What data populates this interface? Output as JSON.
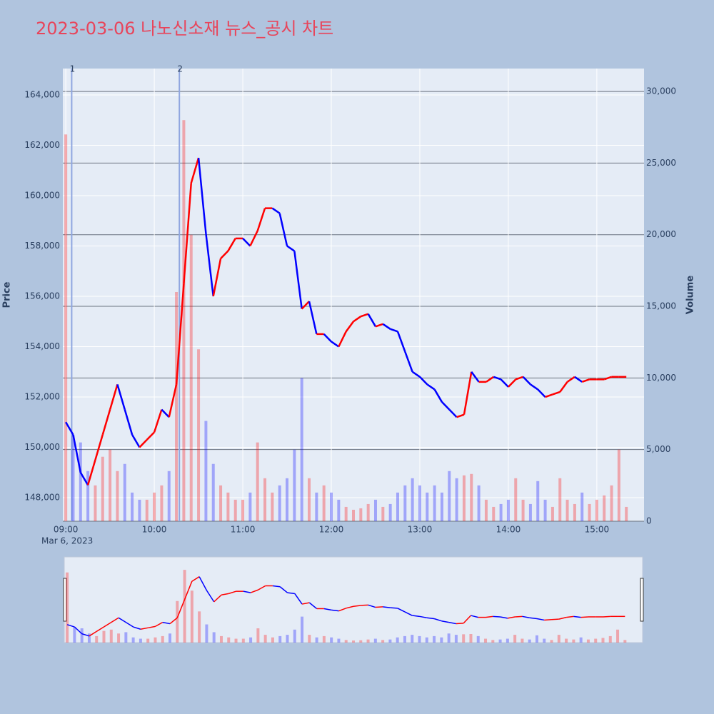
{
  "chart_data": {
    "type": "line",
    "title": "2023-03-06 나노신소재 뉴스_공시 차트",
    "y_label": "Price",
    "y2_label": "Volume",
    "x_date_label": "Mar 6, 2023",
    "x": [
      "2023-03-06 09:00",
      "2023-03-06 09:05",
      "2023-03-06 09:10",
      "2023-03-06 09:15",
      "2023-03-06 09:20",
      "2023-03-06 09:25",
      "2023-03-06 09:30",
      "2023-03-06 09:35",
      "2023-03-06 09:40",
      "2023-03-06 09:45",
      "2023-03-06 09:50",
      "2023-03-06 09:55",
      "2023-03-06 10:00",
      "2023-03-06 10:05",
      "2023-03-06 10:10",
      "2023-03-06 10:15",
      "2023-03-06 10:20",
      "2023-03-06 10:25",
      "2023-03-06 10:30",
      "2023-03-06 10:35",
      "2023-03-06 10:40",
      "2023-03-06 10:45",
      "2023-03-06 10:50",
      "2023-03-06 10:55",
      "2023-03-06 11:00",
      "2023-03-06 11:05",
      "2023-03-06 11:10",
      "2023-03-06 11:15",
      "2023-03-06 11:20",
      "2023-03-06 11:25",
      "2023-03-06 11:30",
      "2023-03-06 11:35",
      "2023-03-06 11:40",
      "2023-03-06 11:45",
      "2023-03-06 11:50",
      "2023-03-06 11:55",
      "2023-03-06 12:00",
      "2023-03-06 12:05",
      "2023-03-06 12:10",
      "2023-03-06 12:15",
      "2023-03-06 12:20",
      "2023-03-06 12:25",
      "2023-03-06 12:30",
      "2023-03-06 12:35",
      "2023-03-06 12:40",
      "2023-03-06 12:45",
      "2023-03-06 12:50",
      "2023-03-06 12:55",
      "2023-03-06 13:00",
      "2023-03-06 13:05",
      "2023-03-06 13:10",
      "2023-03-06 13:15",
      "2023-03-06 13:20",
      "2023-03-06 13:25",
      "2023-03-06 13:30",
      "2023-03-06 13:35",
      "2023-03-06 13:40",
      "2023-03-06 13:45",
      "2023-03-06 13:50",
      "2023-03-06 13:55",
      "2023-03-06 14:00",
      "2023-03-06 14:05",
      "2023-03-06 14:10",
      "2023-03-06 14:15",
      "2023-03-06 14:20",
      "2023-03-06 14:25",
      "2023-03-06 14:30",
      "2023-03-06 14:35",
      "2023-03-06 14:40",
      "2023-03-06 14:45",
      "2023-03-06 14:50",
      "2023-03-06 14:55",
      "2023-03-06 15:00",
      "2023-03-06 15:05",
      "2023-03-06 15:10",
      "2023-03-06 15:15",
      "2023-03-06 15:20"
    ],
    "series": [
      {
        "name": "Price",
        "values": [
          151000,
          150500,
          149000,
          148500,
          149500,
          150500,
          151500,
          152500,
          151500,
          150500,
          150000,
          150300,
          150600,
          151500,
          151200,
          152500,
          156500,
          160500,
          161500,
          158500,
          156000,
          157500,
          157800,
          158300,
          158300,
          158000,
          158600,
          159500,
          159500,
          159300,
          158000,
          157800,
          155500,
          155800,
          154500,
          154500,
          154200,
          154000,
          154600,
          155000,
          155200,
          155300,
          154800,
          154900,
          154700,
          154600,
          153800,
          153000,
          152800,
          152500,
          152300,
          151800,
          151500,
          151200,
          151300,
          153000,
          152600,
          152600,
          152800,
          152700,
          152400,
          152700,
          152800,
          152500,
          152300,
          152000,
          152100,
          152200,
          152600,
          152800,
          152600,
          152700,
          152700,
          152700,
          152800,
          152800,
          152800
        ]
      },
      {
        "name": "Volume",
        "axis": "y2",
        "values": [
          27000,
          6000,
          5500,
          3500,
          2500,
          4500,
          5000,
          3500,
          4000,
          2000,
          1500,
          1500,
          2000,
          2500,
          3500,
          16000,
          28000,
          20000,
          12000,
          7000,
          4000,
          2500,
          2000,
          1500,
          1500,
          2000,
          5500,
          3000,
          2000,
          2500,
          3000,
          5000,
          10000,
          3000,
          2000,
          2500,
          2000,
          1500,
          1000,
          800,
          900,
          1200,
          1500,
          1000,
          1200,
          2000,
          2500,
          3000,
          2500,
          2000,
          2500,
          2000,
          3500,
          3000,
          3200,
          3300,
          2500,
          1500,
          1000,
          1200,
          1500,
          3000,
          1500,
          1200,
          2800,
          1500,
          1000,
          3000,
          1500,
          1200,
          2000,
          1200,
          1500,
          1800,
          2500,
          5000,
          1000
        ]
      }
    ],
    "up_color": "#ff0000",
    "down_color": "#0000ff",
    "xlim": [
      "2023-03-06 08:58",
      "2023-03-06 15:32"
    ],
    "xticks": [
      {
        "value": "2023-03-06 09:00",
        "label": "09:00"
      },
      {
        "value": "2023-03-06 10:00",
        "label": "10:00"
      },
      {
        "value": "2023-03-06 11:00",
        "label": "11:00"
      },
      {
        "value": "2023-03-06 12:00",
        "label": "12:00"
      },
      {
        "value": "2023-03-06 13:00",
        "label": "13:00"
      },
      {
        "value": "2023-03-06 14:00",
        "label": "14:00"
      },
      {
        "value": "2023-03-06 15:00",
        "label": "15:00"
      }
    ],
    "ylim": [
      147064,
      165050
    ],
    "yticks": [
      {
        "value": 148000,
        "label": "148,000"
      },
      {
        "value": 150000,
        "label": "150,000"
      },
      {
        "value": 152000,
        "label": "152,000"
      },
      {
        "value": 154000,
        "label": "154,000"
      },
      {
        "value": 156000,
        "label": "156,000"
      },
      {
        "value": 158000,
        "label": "158,000"
      },
      {
        "value": 160000,
        "label": "160,000"
      },
      {
        "value": 162000,
        "label": "162,000"
      },
      {
        "value": 164000,
        "label": "164,000"
      }
    ],
    "y2lim": [
      0,
      31600
    ],
    "y2ticks": [
      0,
      {
        "value": 5000,
        "label": "5,000"
      },
      {
        "value": 10000,
        "label": "10,000"
      },
      {
        "value": 15000,
        "label": "15,000"
      },
      {
        "value": 20000,
        "label": "20,000"
      },
      {
        "value": 25000,
        "label": "25,000"
      },
      {
        "value": 30000,
        "label": "30,000"
      }
    ],
    "annotations": [
      {
        "x": "2023-03-06 09:04",
        "text": "1"
      },
      {
        "x": "2023-03-06 10:17",
        "text": "2"
      }
    ],
    "grid": true
  }
}
